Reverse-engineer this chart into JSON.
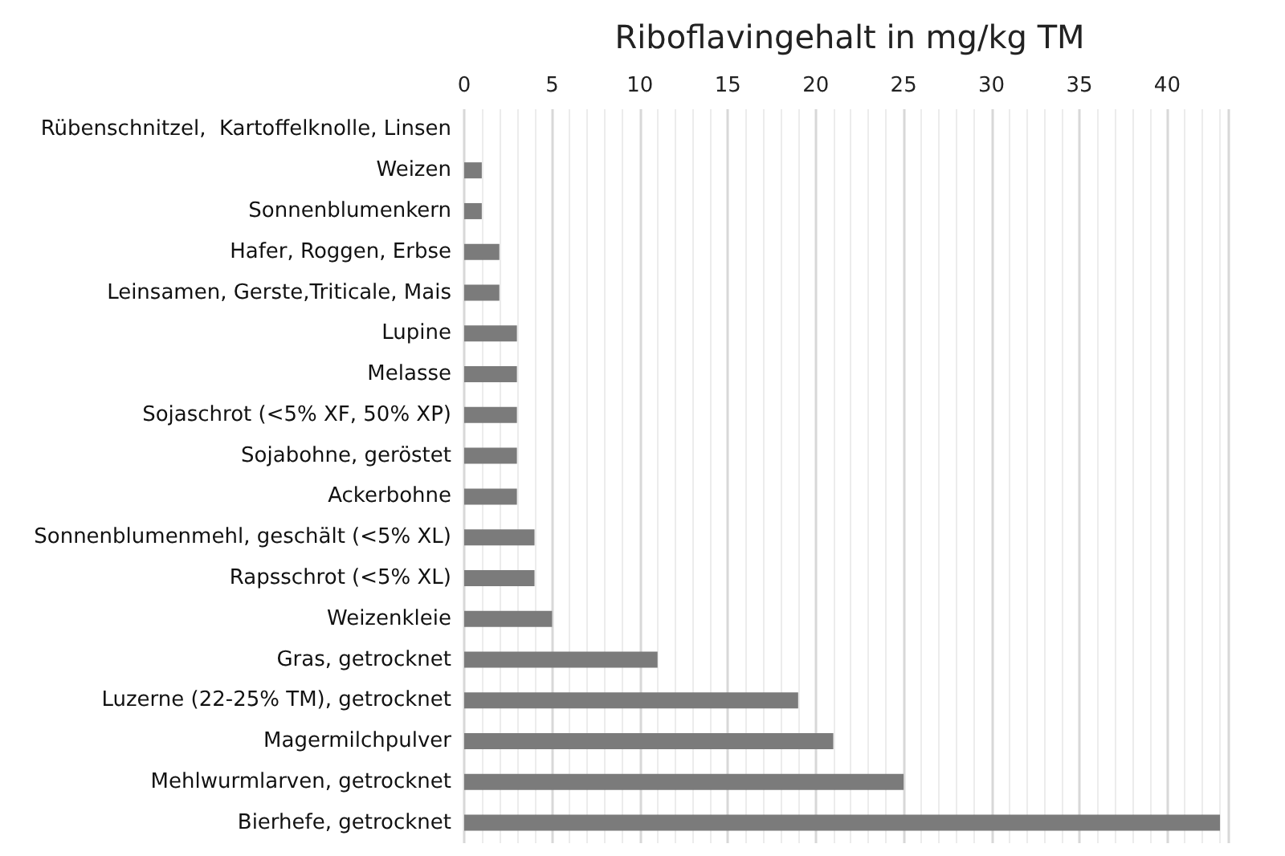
{
  "chart_data": {
    "type": "bar",
    "orientation": "horizontal",
    "title": "Riboflavingehalt in mg/kg TM",
    "categories": [
      "Rübenschnitzel,  Kartoffelknolle, Linsen",
      "Weizen",
      "Sonnenblumenkern",
      "Hafer, Roggen, Erbse",
      "Leinsamen, Gerste,Triticale, Mais",
      "Lupine",
      "Melasse",
      "Sojaschrot (<5% XF, 50% XP)",
      "Sojabohne, geröstet",
      "Ackerbohne",
      "Sonnenblumenmehl, geschält (<5% XL)",
      "Rapsschrot (<5% XL)",
      "Weizenkleie",
      "Gras, getrocknet",
      "Luzerne (22-25% TM), getrocknet",
      "Magermilchpulver",
      "Mehlwurmlarven, getrocknet",
      "Bierhefe, getrocknet"
    ],
    "values": [
      0,
      1,
      1,
      2,
      2,
      3,
      3,
      3,
      3,
      3,
      4,
      4,
      5,
      11,
      19,
      21,
      25,
      43
    ],
    "color": "#7b7b7b",
    "xlim": [
      0,
      43.5
    ],
    "xticks": [
      0,
      5,
      10,
      15,
      20,
      25,
      30,
      35,
      40
    ],
    "grid": "x"
  }
}
